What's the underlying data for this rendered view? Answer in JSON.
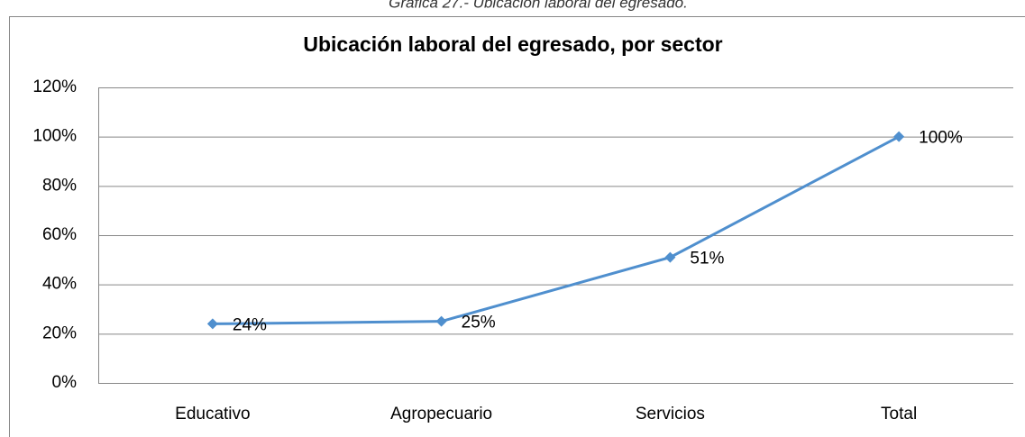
{
  "chart_data": {
    "type": "line",
    "caption": "Gráfica 27.- Ubicación laboral del egresado.",
    "title": "Ubicación laboral del egresado, por sector",
    "categories": [
      "Educativo",
      "Agropecuario",
      "Servicios",
      "Total"
    ],
    "series": [
      {
        "name": "Ubicación laboral",
        "color": "#4f8fce",
        "values": [
          24,
          25,
          51,
          100
        ],
        "value_labels": [
          "24%",
          "25%",
          "51%",
          "100%"
        ]
      }
    ],
    "ylim": [
      0,
      120
    ],
    "yticks": [
      {
        "value": 0,
        "label": "0%"
      },
      {
        "value": 20,
        "label": "20%"
      },
      {
        "value": 40,
        "label": "40%"
      },
      {
        "value": 60,
        "label": "60%"
      },
      {
        "value": 80,
        "label": "80%"
      },
      {
        "value": 100,
        "label": "100%"
      },
      {
        "value": 120,
        "label": "120%"
      }
    ],
    "grid": true
  }
}
